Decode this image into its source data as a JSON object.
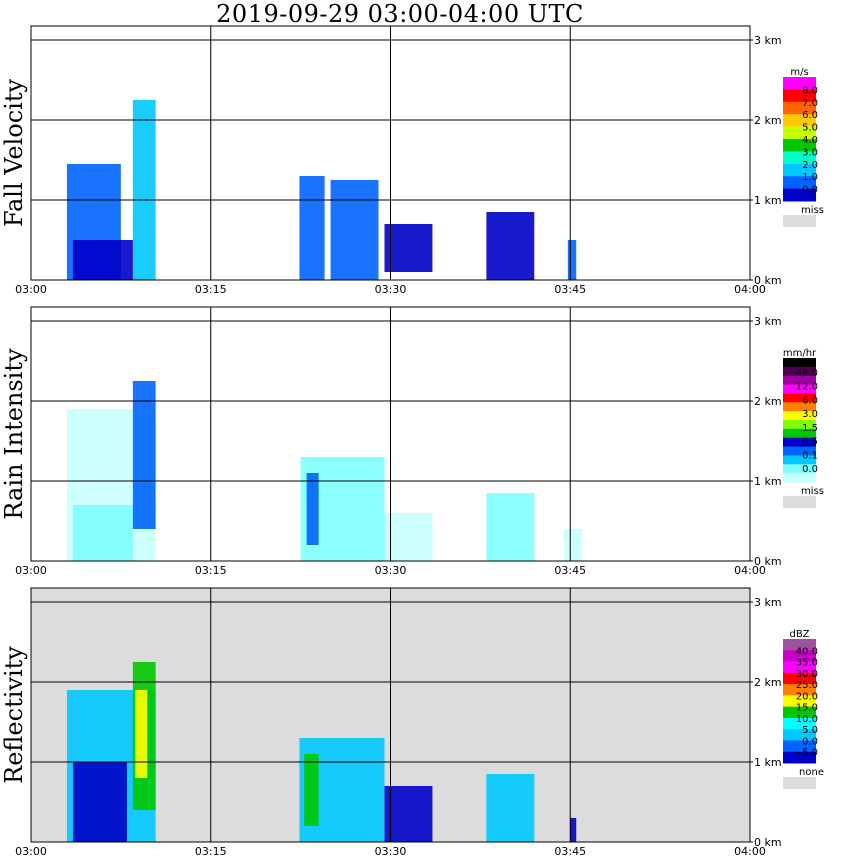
{
  "title": "2019-09-29   03:00-04:00 UTC",
  "chart_data": [
    {
      "type": "heatmap",
      "ylabel": "Fall Velocity",
      "background": "#ffffff",
      "x_ticks": [
        "03:00",
        "03:15",
        "03:30",
        "03:45",
        "04:00"
      ],
      "y_ticks": [
        "0 km",
        "1 km",
        "2 km",
        "3 km"
      ],
      "legend": {
        "unit": "m/s",
        "labels": [
          "8.0",
          "7.0",
          "6.0",
          "5.0",
          "4.0",
          "3.0",
          "2.0",
          "1.0",
          "0.0"
        ],
        "colors": [
          "#ff00ff",
          "#ff0000",
          "#ff6400",
          "#ffc800",
          "#c8ff00",
          "#00c800",
          "#00ffc8",
          "#00c8ff",
          "#0064ff",
          "#0000c8"
        ],
        "missing_label": "miss",
        "missing_color": "#dcdcdc"
      },
      "echoes": [
        {
          "t0": 3.0,
          "t1": 7.5,
          "h0": 0,
          "h1": 1.45,
          "color": "#0064ff"
        },
        {
          "t0": 8.5,
          "t1": 10.4,
          "h0": 0,
          "h1": 2.25,
          "color": "#00c8ff"
        },
        {
          "t0": 3.5,
          "t1": 8.5,
          "h0": 0,
          "h1": 0.5,
          "color": "#0000c8"
        },
        {
          "t0": 22.4,
          "t1": 24.5,
          "h0": 0,
          "h1": 1.3,
          "color": "#0064ff"
        },
        {
          "t0": 25.0,
          "t1": 29.0,
          "h0": 0,
          "h1": 1.25,
          "color": "#0064ff"
        },
        {
          "t0": 29.5,
          "t1": 33.5,
          "h0": 0.1,
          "h1": 0.7,
          "color": "#0000c8"
        },
        {
          "t0": 38.0,
          "t1": 42.0,
          "h0": 0,
          "h1": 0.85,
          "color": "#0000c8"
        },
        {
          "t0": 44.8,
          "t1": 45.5,
          "h0": 0,
          "h1": 0.5,
          "color": "#0064ff"
        }
      ]
    },
    {
      "type": "heatmap",
      "ylabel": "Rain Intensity",
      "background": "#ffffff",
      "x_ticks": [
        "03:00",
        "03:15",
        "03:30",
        "03:45",
        "04:00"
      ],
      "y_ticks": [
        "0 km",
        "1 km",
        "2 km",
        "3 km"
      ],
      "legend": {
        "unit": "mm/hr",
        "labels": [
          "48.0",
          "12.0",
          "6.0",
          "3.0",
          "1.5",
          "0.5",
          "0.1",
          "0.0"
        ],
        "colors": [
          "#000000",
          "#500050",
          "#a000a0",
          "#ff00ff",
          "#ff0000",
          "#ff8000",
          "#ffff00",
          "#80ff00",
          "#00c800",
          "#0000c8",
          "#0064ff",
          "#00c8ff",
          "#80ffff",
          "#c8ffff"
        ],
        "missing_label": "miss",
        "missing_color": "#dcdcdc"
      },
      "echoes": [
        {
          "t0": 3.0,
          "t1": 10.4,
          "h0": 0,
          "h1": 1.9,
          "color": "#c8ffff"
        },
        {
          "t0": 3.5,
          "t1": 8.5,
          "h0": 0,
          "h1": 0.7,
          "color": "#80ffff"
        },
        {
          "t0": 8.5,
          "t1": 10.4,
          "h0": 0.4,
          "h1": 2.25,
          "color": "#0064ff"
        },
        {
          "t0": 22.5,
          "t1": 29.5,
          "h0": 0,
          "h1": 1.3,
          "color": "#80ffff"
        },
        {
          "t0": 23.0,
          "t1": 24.0,
          "h0": 0.2,
          "h1": 1.1,
          "color": "#0064ff"
        },
        {
          "t0": 29.5,
          "t1": 33.5,
          "h0": 0,
          "h1": 0.6,
          "color": "#c8ffff"
        },
        {
          "t0": 38.0,
          "t1": 42.0,
          "h0": 0,
          "h1": 0.85,
          "color": "#80ffff"
        },
        {
          "t0": 44.5,
          "t1": 46.0,
          "h0": 0,
          "h1": 0.4,
          "color": "#c8ffff"
        }
      ]
    },
    {
      "type": "heatmap",
      "ylabel": "Reflectivity",
      "background": "#dcdcdc",
      "x_ticks": [
        "03:00",
        "03:15",
        "03:30",
        "03:45",
        "04:00"
      ],
      "y_ticks": [
        "0 km",
        "1 km",
        "2 km",
        "3 km"
      ],
      "legend": {
        "unit": "dBZ",
        "labels": [
          "40.0",
          "35.0",
          "30.0",
          "25.0",
          "20.0",
          "15.0",
          "10.0",
          "5.0",
          "0.0",
          "−5.0"
        ],
        "colors": [
          "#a050a0",
          "#c800c8",
          "#ff00ff",
          "#ff0000",
          "#ff8000",
          "#ffff00",
          "#00c800",
          "#00ffff",
          "#00c8ff",
          "#0064ff",
          "#0000c8"
        ],
        "missing_label": "none",
        "missing_color": "#dcdcdc"
      },
      "echoes": [
        {
          "t0": 3.0,
          "t1": 10.4,
          "h0": 0,
          "h1": 1.9,
          "color": "#00c8ff"
        },
        {
          "t0": 3.5,
          "t1": 8.0,
          "h0": 0,
          "h1": 1.0,
          "color": "#0000c8"
        },
        {
          "t0": 8.5,
          "t1": 10.4,
          "h0": 0.4,
          "h1": 2.25,
          "color": "#00c800"
        },
        {
          "t0": 8.7,
          "t1": 9.7,
          "h0": 0.8,
          "h1": 1.9,
          "color": "#ffff00"
        },
        {
          "t0": 22.4,
          "t1": 29.5,
          "h0": 0,
          "h1": 1.3,
          "color": "#00c8ff"
        },
        {
          "t0": 22.8,
          "t1": 24.0,
          "h0": 0.2,
          "h1": 1.1,
          "color": "#00c800"
        },
        {
          "t0": 29.5,
          "t1": 33.5,
          "h0": 0,
          "h1": 0.7,
          "color": "#0000c8"
        },
        {
          "t0": 38.0,
          "t1": 42.0,
          "h0": 0,
          "h1": 0.85,
          "color": "#00c8ff"
        },
        {
          "t0": 45.0,
          "t1": 45.5,
          "h0": 0,
          "h1": 0.3,
          "color": "#0000c8"
        }
      ]
    }
  ]
}
